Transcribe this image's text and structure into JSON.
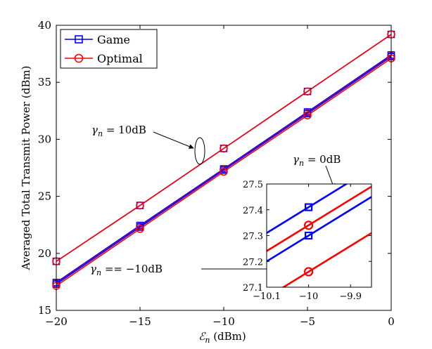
{
  "chart_data": {
    "type": "line",
    "xlabel": "ℰn (dBm)",
    "ylabel": "Averaged Total Transmit Power (dBm)",
    "x": [
      -20,
      -15,
      -10,
      -5,
      0
    ],
    "xlim": [
      -20,
      0
    ],
    "ylim": [
      15,
      40
    ],
    "x_ticks": [
      -20,
      -15,
      -10,
      -5,
      0
    ],
    "y_ticks": [
      15,
      20,
      25,
      30,
      35,
      40
    ],
    "x_tick_labels": [
      "−20",
      "−15",
      "−10",
      "−5",
      "0"
    ],
    "y_tick_labels": [
      "15",
      "20",
      "25",
      "30",
      "35",
      "40"
    ],
    "legend": [
      {
        "name": "Game",
        "color": "#0000ff",
        "marker": "square"
      },
      {
        "name": "Optimal",
        "color": "#ff0000",
        "marker": "circle"
      }
    ],
    "legend_position": "top-left",
    "series": [
      {
        "name": "Game",
        "label": "γn = 10dB",
        "color": "#0000ff",
        "marker": "square",
        "values": [
          19.3,
          24.2,
          29.2,
          34.2,
          39.2
        ]
      },
      {
        "name": "Optimal",
        "label": "γn = 10dB",
        "color": "#ff0000",
        "marker": "circle",
        "values": [
          19.3,
          24.2,
          29.2,
          34.2,
          39.2
        ]
      },
      {
        "name": "Game",
        "label": "γn = 0dB",
        "color": "#0000ff",
        "marker": "square",
        "values": [
          17.45,
          22.45,
          27.41,
          32.4,
          37.4
        ]
      },
      {
        "name": "Optimal",
        "label": "γn = 0dB",
        "color": "#ff0000",
        "marker": "circle",
        "values": [
          17.35,
          22.35,
          27.34,
          32.3,
          37.3
        ]
      },
      {
        "name": "Game",
        "label": "γn = −10dB",
        "color": "#0000ff",
        "marker": "square",
        "values": [
          17.3,
          22.3,
          27.3,
          32.25,
          37.25
        ]
      },
      {
        "name": "Optimal",
        "label": "γn = −10dB",
        "color": "#ff0000",
        "marker": "circle",
        "values": [
          17.15,
          22.15,
          27.16,
          32.1,
          37.1
        ]
      }
    ],
    "annotations": [
      {
        "text": "γn = 10dB"
      },
      {
        "text": "γn = 0dB"
      },
      {
        "text": "γn == −10dB"
      }
    ],
    "inset": {
      "xlim": [
        -10.1,
        -9.85
      ],
      "ylim": [
        27.1,
        27.5
      ],
      "x_ticks": [
        -10.1,
        -10,
        -9.9
      ],
      "y_ticks": [
        27.1,
        27.2,
        27.3,
        27.4,
        27.5
      ],
      "x_tick_labels": [
        "−10.1",
        "−10",
        "−9.9"
      ],
      "y_tick_labels": [
        "27.1",
        "27.2",
        "27.3",
        "27.4",
        "27.5"
      ],
      "slope": 1.0,
      "lines": [
        {
          "name": "Game",
          "label": "γn = 0dB",
          "color": "#0000ff",
          "marker": "square",
          "value_at_minus10": 27.41
        },
        {
          "name": "Optimal",
          "label": "γn = 0dB",
          "color": "#ff0000",
          "marker": "circle",
          "value_at_minus10": 27.34
        },
        {
          "name": "Game",
          "label": "γn = −10dB",
          "color": "#0000ff",
          "marker": "square",
          "value_at_minus10": 27.3
        },
        {
          "name": "Optimal",
          "label": "γn = −10dB",
          "color": "#ff0000",
          "marker": "circle",
          "value_at_minus10": 27.16
        }
      ]
    }
  }
}
